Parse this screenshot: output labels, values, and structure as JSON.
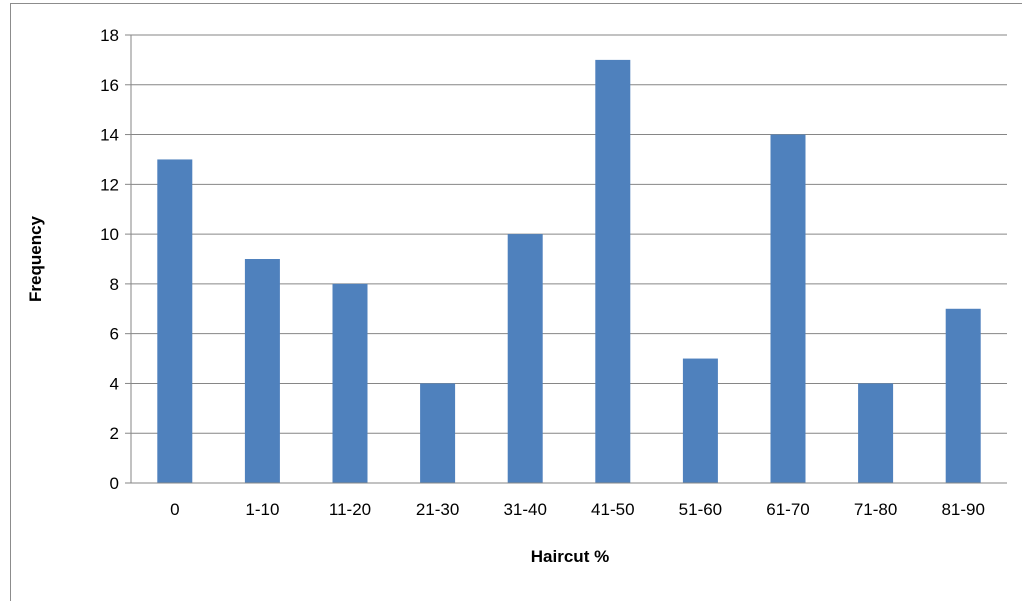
{
  "chart_data": {
    "type": "bar",
    "title": "",
    "xlabel": "Haircut %",
    "ylabel": "Frequency",
    "categories": [
      "0",
      "1-10",
      "11-20",
      "21-30",
      "31-40",
      "41-50",
      "51-60",
      "61-70",
      "71-80",
      "81-90"
    ],
    "values": [
      13,
      9,
      8,
      4,
      10,
      17,
      5,
      14,
      4,
      7
    ],
    "ylim": [
      0,
      18
    ],
    "yticks": [
      0,
      2,
      4,
      6,
      8,
      10,
      12,
      14,
      16,
      18
    ],
    "grid": true,
    "legend": "none",
    "bar_color": "#4f81bd",
    "grid_color": "#868686"
  }
}
